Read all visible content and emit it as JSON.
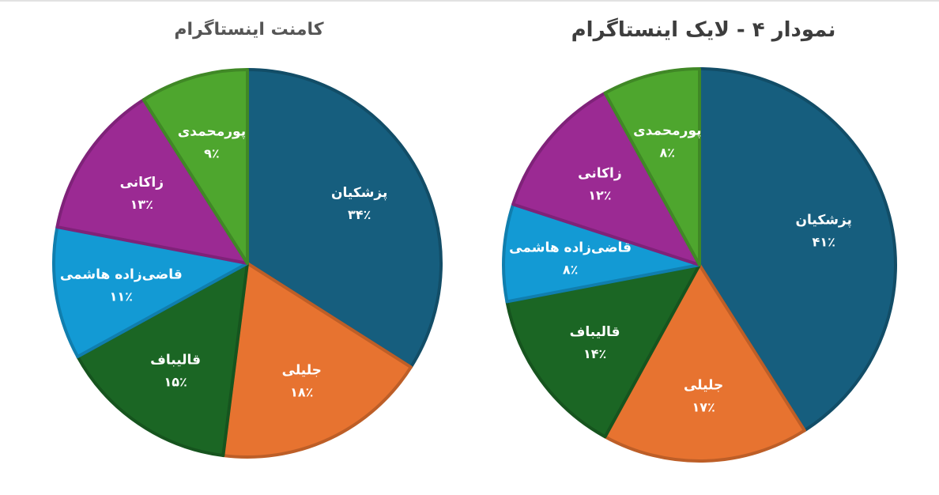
{
  "chart_data": [
    {
      "type": "pie",
      "title": "کامنت اینستاگرام",
      "colors": [
        "#165e7e",
        "#e77330",
        "#1b6624",
        "#139ad4",
        "#9b2a93",
        "#4ea62e"
      ],
      "slices": [
        {
          "name": "پزشکیان",
          "value": 34,
          "label": "۳۴٪"
        },
        {
          "name": "جلیلی",
          "value": 18,
          "label": "۱۸٪"
        },
        {
          "name": "قالیباف",
          "value": 15,
          "label": "۱۵٪"
        },
        {
          "name": "قاضی‌زاده هاشمی",
          "value": 11,
          "label": "۱۱٪"
        },
        {
          "name": "زاکانی",
          "value": 13,
          "label": "۱۳٪"
        },
        {
          "name": "پورمحمدی",
          "value": 9,
          "label": "۹٪"
        }
      ]
    },
    {
      "type": "pie",
      "title": "نمودار ۴ - لایک اینستاگرام",
      "colors": [
        "#165e7e",
        "#e77330",
        "#1b6624",
        "#139ad4",
        "#9b2a93",
        "#4ea62e"
      ],
      "slices": [
        {
          "name": "پزشکیان",
          "value": 41,
          "label": "۴۱٪"
        },
        {
          "name": "جلیلی",
          "value": 17,
          "label": "۱۷٪"
        },
        {
          "name": "قالیباف",
          "value": 14,
          "label": "۱۴٪"
        },
        {
          "name": "قاضی‌زاده هاشمی",
          "value": 8,
          "label": "۸٪"
        },
        {
          "name": "زاکانی",
          "value": 12,
          "label": "۱۲٪"
        },
        {
          "name": "پورمحمدی",
          "value": 8,
          "label": "۸٪"
        }
      ]
    }
  ]
}
